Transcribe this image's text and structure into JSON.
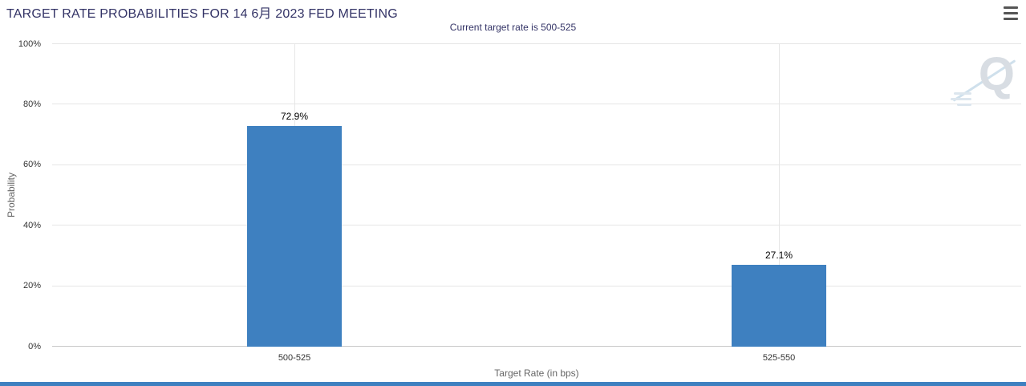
{
  "chart_data": {
    "type": "bar",
    "title": "TARGET RATE PROBABILITIES FOR 14 6月 2023 FED MEETING",
    "subtitle": "Current target rate is 500-525",
    "categories": [
      "500-525",
      "525-550"
    ],
    "values": [
      72.9,
      27.1
    ],
    "value_labels": [
      "72.9%",
      "27.1%"
    ],
    "xlabel": "Target Rate (in bps)",
    "ylabel": "Probability",
    "ylim": [
      0,
      100
    ],
    "yticks": [
      "0%",
      "20%",
      "40%",
      "60%",
      "80%",
      "100%"
    ],
    "grid": true,
    "legend": false,
    "bar_color": "#3e80c0",
    "title_color": "#333366"
  },
  "menu": {
    "icon": "hamburger-icon"
  },
  "watermark": {
    "letter": "Q"
  },
  "footer": {
    "strip_color": "#3e80c0"
  }
}
